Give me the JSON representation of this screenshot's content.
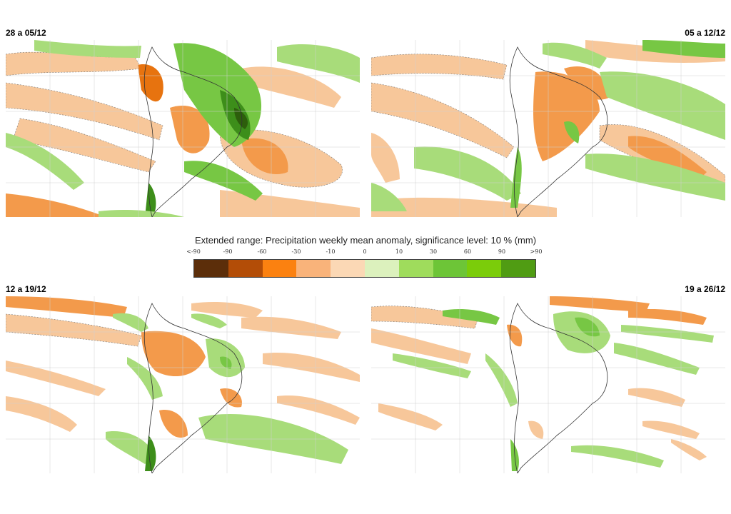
{
  "legend": {
    "title": "Extended range: Precipitation weekly mean anomaly, significance level: 10 % (mm)",
    "ticks": [
      "<-90",
      "-90",
      "-60",
      "-30",
      "-10",
      "0",
      "10",
      "30",
      "60",
      "90",
      ">90"
    ],
    "colors": [
      "#5c2e0a",
      "#b34d07",
      "#fb8110",
      "#f9b37a",
      "#fbd8b5",
      "#dcf1bd",
      "#9fdc5c",
      "#6dc537",
      "#7bcc0a",
      "#509c13",
      "#3f6b08"
    ]
  },
  "panels": [
    {
      "label": "28 a 05/12",
      "label_align": "left"
    },
    {
      "label": "05 a 12/12",
      "label_align": "right"
    },
    {
      "label": "12 a 19/12",
      "label_align": "left"
    },
    {
      "label": "19 a 26/12",
      "label_align": "right"
    }
  ],
  "palette": {
    "dry_light": "#f7c79a",
    "dry_mid": "#f39a4b",
    "dry_strong": "#e7730f",
    "wet_light": "#a8dc7a",
    "wet_mid": "#77c744",
    "wet_strong": "#3d8e1a",
    "wet_extreme": "#2d5e0c"
  }
}
